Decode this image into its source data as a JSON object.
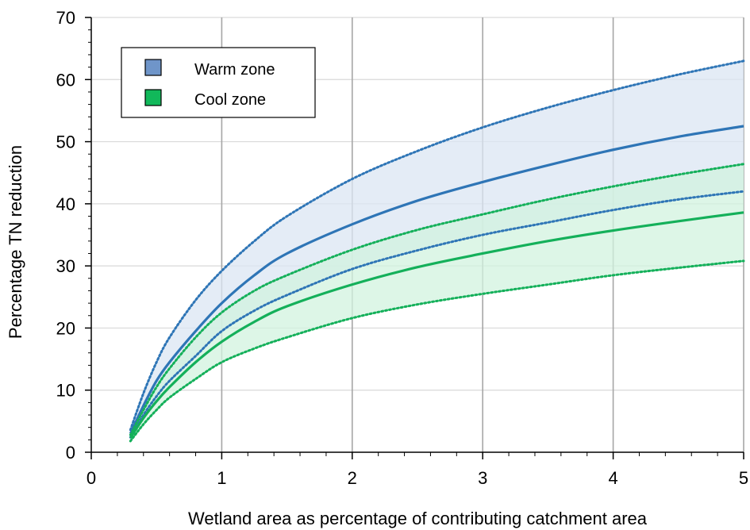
{
  "chart_data": {
    "type": "area",
    "title": "",
    "xlabel": "Wetland area as percentage of contributing catchment area",
    "ylabel": "Percentage TN reduction",
    "xlim": [
      0,
      5
    ],
    "ylim": [
      0,
      70
    ],
    "x_major_ticks": [
      0,
      1,
      2,
      3,
      4,
      5
    ],
    "y_major_ticks": [
      0,
      10,
      20,
      30,
      40,
      50,
      60,
      70
    ],
    "x_minor_step": 0.2,
    "y_minor_step": 2,
    "grid": {
      "vertical": true,
      "horizontal": true
    },
    "legend": {
      "placement": "top-left",
      "entries": [
        {
          "label": "Warm zone",
          "color": "#6f95c9"
        },
        {
          "label": "Cool zone",
          "color": "#11b85a"
        }
      ]
    },
    "x": [
      0.3,
      0.4,
      0.5,
      0.6,
      0.8,
      1.0,
      1.25,
      1.5,
      2.0,
      2.5,
      3.0,
      3.5,
      4.0,
      4.5,
      5.0
    ],
    "series": [
      {
        "name": "Warm zone",
        "line_color": "#2e75b6",
        "band_color": "#dbe5f3",
        "mean": [
          3.0,
          7.5,
          11.5,
          14.5,
          19.5,
          24.0,
          28.5,
          32.0,
          36.7,
          40.5,
          43.5,
          46.2,
          48.7,
          50.8,
          52.5
        ],
        "upper": [
          3.6,
          9.5,
          14.5,
          18.5,
          24.5,
          29.2,
          34.0,
          38.0,
          44.0,
          48.5,
          52.3,
          55.5,
          58.3,
          60.8,
          63.0
        ],
        "lower": [
          2.4,
          6.0,
          9.0,
          11.5,
          15.5,
          19.5,
          22.8,
          25.3,
          29.5,
          32.5,
          35.0,
          37.0,
          39.0,
          40.7,
          42.0
        ]
      },
      {
        "name": "Cool zone",
        "line_color": "#14b05a",
        "band_color": "#d2f3df",
        "mean": [
          2.3,
          5.5,
          8.2,
          10.5,
          14.5,
          17.8,
          21.0,
          23.5,
          27.0,
          29.8,
          32.0,
          34.0,
          35.7,
          37.2,
          38.6
        ],
        "upper": [
          2.8,
          6.8,
          10.5,
          13.5,
          18.5,
          22.5,
          26.0,
          28.5,
          32.6,
          35.8,
          38.3,
          40.7,
          42.8,
          44.7,
          46.4
        ],
        "lower": [
          1.8,
          4.5,
          6.8,
          8.8,
          11.8,
          14.5,
          16.7,
          18.5,
          21.6,
          23.8,
          25.5,
          27.0,
          28.5,
          29.7,
          30.8
        ]
      }
    ]
  }
}
